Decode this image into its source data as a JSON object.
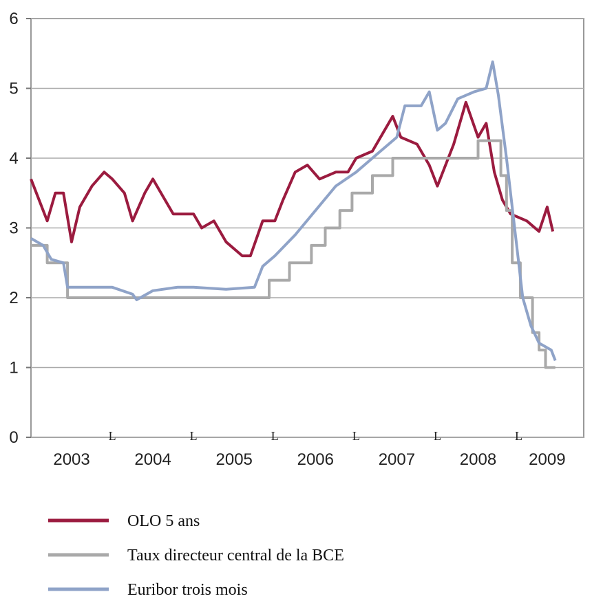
{
  "chart_data": {
    "type": "line",
    "xlim": [
      2003,
      2009.8
    ],
    "ylim": [
      0,
      6
    ],
    "yticks": [
      0,
      1,
      2,
      3,
      4,
      5,
      6
    ],
    "xticks": [
      {
        "value": 2003.5,
        "label": "2003"
      },
      {
        "value": 2004.5,
        "label": "2004"
      },
      {
        "value": 2005.5,
        "label": "2005"
      },
      {
        "value": 2006.5,
        "label": "2006"
      },
      {
        "value": 2007.5,
        "label": "2007"
      },
      {
        "value": 2008.5,
        "label": "2008"
      },
      {
        "value": 2009.35,
        "label": "2009"
      }
    ],
    "xminorticks": [
      {
        "value": 2004,
        "label": "L"
      },
      {
        "value": 2005,
        "label": "L"
      },
      {
        "value": 2006,
        "label": "L"
      },
      {
        "value": 2007,
        "label": "L"
      },
      {
        "value": 2008,
        "label": "L"
      },
      {
        "value": 2009,
        "label": "L"
      }
    ],
    "grid": true,
    "series": [
      {
        "name": "OLO 5 ans",
        "color": "#9b1b3f",
        "x": [
          2003.0,
          2003.1,
          2003.2,
          2003.3,
          2003.4,
          2003.5,
          2003.6,
          2003.75,
          2003.9,
          2004.0,
          2004.15,
          2004.25,
          2004.4,
          2004.5,
          2004.65,
          2004.75,
          2005.0,
          2005.1,
          2005.25,
          2005.4,
          2005.6,
          2005.7,
          2005.85,
          2006.0,
          2006.1,
          2006.25,
          2006.4,
          2006.55,
          2006.75,
          2006.9,
          2007.0,
          2007.2,
          2007.45,
          2007.55,
          2007.75,
          2007.9,
          2008.0,
          2008.2,
          2008.35,
          2008.5,
          2008.6,
          2008.7,
          2008.8,
          2008.9,
          2009.1,
          2009.25,
          2009.35,
          2009.42
        ],
        "values": [
          3.7,
          3.4,
          3.1,
          3.5,
          3.5,
          2.8,
          3.3,
          3.6,
          3.8,
          3.7,
          3.5,
          3.1,
          3.5,
          3.7,
          3.4,
          3.2,
          3.2,
          3.0,
          3.1,
          2.8,
          2.6,
          2.6,
          3.1,
          3.1,
          3.4,
          3.8,
          3.9,
          3.7,
          3.8,
          3.8,
          4.0,
          4.1,
          4.6,
          4.3,
          4.2,
          3.9,
          3.6,
          4.2,
          4.8,
          4.3,
          4.5,
          3.8,
          3.4,
          3.2,
          3.1,
          2.95,
          3.3,
          2.95
        ]
      },
      {
        "name": "Taux directeur central de la BCE",
        "color": "#a9a9a9",
        "x": [
          2003.0,
          2003.2,
          2003.2,
          2003.45,
          2003.45,
          2005.93,
          2005.93,
          2006.18,
          2006.18,
          2006.45,
          2006.45,
          2006.62,
          2006.62,
          2006.8,
          2006.8,
          2006.95,
          2006.95,
          2007.2,
          2007.2,
          2007.45,
          2007.45,
          2008.5,
          2008.5,
          2008.78,
          2008.78,
          2008.85,
          2008.85,
          2008.92,
          2008.92,
          2009.02,
          2009.02,
          2009.17,
          2009.17,
          2009.25,
          2009.25,
          2009.33,
          2009.33,
          2009.45
        ],
        "values": [
          2.75,
          2.75,
          2.5,
          2.5,
          2.0,
          2.0,
          2.25,
          2.25,
          2.5,
          2.5,
          2.75,
          2.75,
          3.0,
          3.0,
          3.25,
          3.25,
          3.5,
          3.5,
          3.75,
          3.75,
          4.0,
          4.0,
          4.25,
          4.25,
          3.75,
          3.75,
          3.25,
          3.25,
          2.5,
          2.5,
          2.0,
          2.0,
          1.5,
          1.5,
          1.25,
          1.25,
          1.0,
          1.0
        ]
      },
      {
        "name": "Euribor trois mois",
        "color": "#8fa3c8",
        "x": [
          2003.0,
          2003.15,
          2003.25,
          2003.4,
          2003.45,
          2003.7,
          2004.0,
          2004.25,
          2004.3,
          2004.5,
          2004.8,
          2005.0,
          2005.4,
          2005.75,
          2005.85,
          2006.0,
          2006.25,
          2006.5,
          2006.75,
          2007.0,
          2007.25,
          2007.5,
          2007.6,
          2007.8,
          2007.9,
          2008.0,
          2008.1,
          2008.25,
          2008.45,
          2008.6,
          2008.68,
          2008.75,
          2008.85,
          2008.95,
          2009.05,
          2009.15,
          2009.25,
          2009.4,
          2009.45
        ],
        "values": [
          2.85,
          2.75,
          2.55,
          2.5,
          2.15,
          2.15,
          2.15,
          2.05,
          1.97,
          2.1,
          2.15,
          2.15,
          2.12,
          2.15,
          2.45,
          2.6,
          2.9,
          3.25,
          3.6,
          3.8,
          4.05,
          4.3,
          4.75,
          4.75,
          4.95,
          4.4,
          4.5,
          4.85,
          4.95,
          5.0,
          5.38,
          4.9,
          4.0,
          3.0,
          2.0,
          1.6,
          1.35,
          1.25,
          1.1
        ]
      }
    ]
  }
}
